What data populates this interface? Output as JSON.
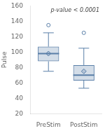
{
  "chart_data": {
    "type": "box",
    "categories": [
      "PreStim",
      "PostStim"
    ],
    "boxes": [
      {
        "med": 98,
        "q1": 88,
        "q3": 107,
        "whislo": 75,
        "whishi": 125,
        "fliers": [
          135
        ],
        "mean": 98
      },
      {
        "med": 70,
        "q1": 63,
        "q3": 83,
        "whislo": 53,
        "whishi": 105,
        "fliers": [
          125
        ],
        "mean": 75
      }
    ],
    "ylabel": "Pulse",
    "annotation": "p-value < 0.0001",
    "ylim": [
      20,
      160
    ],
    "yticks": [
      20,
      40,
      60,
      80,
      100,
      120,
      140,
      160
    ],
    "color": "#5a7fa8",
    "grid": false
  }
}
